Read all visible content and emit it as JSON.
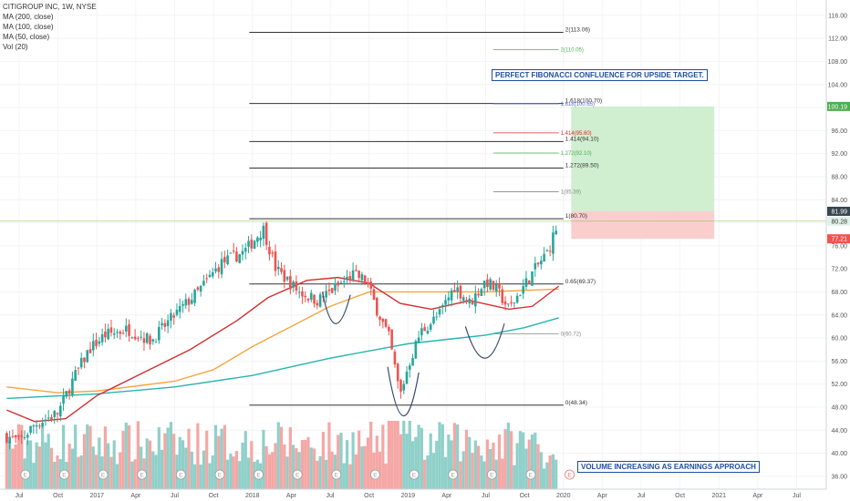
{
  "legend": {
    "symbol_line": "CITIGROUP INC, 1W, NYSE",
    "ma200": "MA (200, close)",
    "ma100": "MA (100, close)",
    "ma50": "MA (50, close)",
    "vol": "Vol (20)"
  },
  "annotations": {
    "fib_confluence": "PERFECT FIBONACCI CONFLUENCE FOR UPSIDE TARGET.",
    "volume_note": "VOLUME INCREASING AS EARNINGS APPROACH"
  },
  "colors": {
    "up": "#26a69a",
    "down": "#ef5350",
    "ma200": "#26b5b0",
    "ma100": "#f7a440",
    "ma50": "#d32f2f",
    "target_zone": "#c8ecc8",
    "stop_zone": "#fbc9c9",
    "annotation": "#1e4fa0"
  },
  "chart_data": {
    "type": "candlestick",
    "symbol": "CITIGROUP INC",
    "interval": "1W",
    "exchange": "NYSE",
    "ylim": [
      34,
      116
    ],
    "y_ticks": [
      "36.00",
      "40.00",
      "44.00",
      "48.00",
      "52.00",
      "56.00",
      "60.00",
      "64.00",
      "68.00",
      "72.00",
      "76.00",
      "80.00",
      "84.00",
      "88.00",
      "92.00",
      "96.00",
      "100.00",
      "104.00",
      "108.00",
      "112.00",
      "116.00"
    ],
    "x_ticks": [
      {
        "label": "Jul",
        "t": 2016.5
      },
      {
        "label": "Oct",
        "t": 2016.75
      },
      {
        "label": "2017",
        "t": 2017.0
      },
      {
        "label": "Apr",
        "t": 2017.25
      },
      {
        "label": "Jul",
        "t": 2017.5
      },
      {
        "label": "Oct",
        "t": 2017.75
      },
      {
        "label": "2018",
        "t": 2018.0
      },
      {
        "label": "Apr",
        "t": 2018.25
      },
      {
        "label": "Jul",
        "t": 2018.5
      },
      {
        "label": "Oct",
        "t": 2018.75
      },
      {
        "label": "2019",
        "t": 2019.0
      },
      {
        "label": "Apr",
        "t": 2019.25
      },
      {
        "label": "Jul",
        "t": 2019.5
      },
      {
        "label": "Oct",
        "t": 2019.75
      },
      {
        "label": "2020",
        "t": 2020.0
      },
      {
        "label": "Apr",
        "t": 2020.25
      },
      {
        "label": "Jul",
        "t": 2020.5
      },
      {
        "label": "Oct",
        "t": 2020.75
      },
      {
        "label": "2021",
        "t": 2021.0
      },
      {
        "label": "Apr",
        "t": 2021.25
      },
      {
        "label": "Jul",
        "t": 2021.5
      }
    ],
    "price_path": [
      [
        2016.42,
        43.0
      ],
      [
        2016.5,
        42.0
      ],
      [
        2016.6,
        45.0
      ],
      [
        2016.75,
        47.0
      ],
      [
        2016.85,
        53.0
      ],
      [
        2016.95,
        58.0
      ],
      [
        2017.05,
        60.5
      ],
      [
        2017.2,
        61.5
      ],
      [
        2017.35,
        59.5
      ],
      [
        2017.5,
        64.0
      ],
      [
        2017.65,
        68.0
      ],
      [
        2017.8,
        73.0
      ],
      [
        2017.95,
        75.0
      ],
      [
        2018.07,
        79.0
      ],
      [
        2018.15,
        72.0
      ],
      [
        2018.3,
        68.0
      ],
      [
        2018.42,
        66.5
      ],
      [
        2018.55,
        69.0
      ],
      [
        2018.65,
        71.0
      ],
      [
        2018.73,
        70.0
      ],
      [
        2018.8,
        65.0
      ],
      [
        2018.88,
        60.0
      ],
      [
        2018.95,
        50.0
      ],
      [
        2019.0,
        55.0
      ],
      [
        2019.08,
        61.0
      ],
      [
        2019.2,
        64.0
      ],
      [
        2019.3,
        69.0
      ],
      [
        2019.4,
        66.0
      ],
      [
        2019.5,
        70.0
      ],
      [
        2019.58,
        68.0
      ],
      [
        2019.65,
        65.0
      ],
      [
        2019.72,
        68.0
      ],
      [
        2019.82,
        72.0
      ],
      [
        2019.9,
        75.0
      ],
      [
        2019.97,
        80.28
      ]
    ],
    "candle_step": 0.0192,
    "moving_averages": [
      {
        "name": "MA (200, close)",
        "color": "#26b5b0",
        "points": [
          [
            2016.42,
            49.5
          ],
          [
            2017.0,
            50.3
          ],
          [
            2017.5,
            51.5
          ],
          [
            2018.0,
            53.5
          ],
          [
            2018.5,
            56.5
          ],
          [
            2019.0,
            59.0
          ],
          [
            2019.5,
            60.5
          ],
          [
            2019.75,
            61.8
          ],
          [
            2019.97,
            63.5
          ]
        ]
      },
      {
        "name": "MA (100, close)",
        "color": "#f7a440",
        "points": [
          [
            2016.42,
            51.5
          ],
          [
            2016.75,
            50.5
          ],
          [
            2017.0,
            50.8
          ],
          [
            2017.5,
            52.5
          ],
          [
            2017.75,
            54.5
          ],
          [
            2018.0,
            58.5
          ],
          [
            2018.25,
            62.0
          ],
          [
            2018.5,
            65.5
          ],
          [
            2018.75,
            68.0
          ],
          [
            2019.0,
            68.0
          ],
          [
            2019.5,
            68.0
          ],
          [
            2019.97,
            68.5
          ]
        ]
      },
      {
        "name": "MA (50, close)",
        "color": "#d32f2f",
        "points": [
          [
            2016.42,
            47.5
          ],
          [
            2016.6,
            45.5
          ],
          [
            2016.8,
            46.0
          ],
          [
            2017.0,
            50.0
          ],
          [
            2017.3,
            54.0
          ],
          [
            2017.6,
            58.0
          ],
          [
            2017.9,
            63.0
          ],
          [
            2018.1,
            67.0
          ],
          [
            2018.35,
            70.0
          ],
          [
            2018.55,
            70.5
          ],
          [
            2018.75,
            69.5
          ],
          [
            2018.95,
            66.0
          ],
          [
            2019.15,
            65.0
          ],
          [
            2019.4,
            66.5
          ],
          [
            2019.65,
            65.0
          ],
          [
            2019.8,
            65.5
          ],
          [
            2019.97,
            69.0
          ]
        ]
      }
    ],
    "fib_set_1": {
      "t_start": 2017.98,
      "t_end": 2020.0,
      "levels": [
        {
          "label": "2(113.06)",
          "value": 113.06
        },
        {
          "label": "1.618(100.70)",
          "value": 100.7
        },
        {
          "label": "1.414(94.10)",
          "value": 94.1
        },
        {
          "label": "1.272(89.50)",
          "value": 89.5
        },
        {
          "label": "1(80.70)",
          "value": 80.7
        },
        {
          "label": "0.65(69.37)",
          "value": 69.37
        },
        {
          "label": "0(48.34)",
          "value": 48.34
        }
      ]
    },
    "fib_set_2": {
      "t_start": 2019.55,
      "t_end": 2019.97,
      "levels": [
        {
          "label": "2(110.05)",
          "value": 110.05,
          "color": "#4caf50"
        },
        {
          "label": "1.618(100.65)",
          "value": 100.65,
          "color": "#5c6bc0"
        },
        {
          "label": "1.414(95.60)",
          "value": 95.6,
          "color": "#d32f2f"
        },
        {
          "label": "1.272(92.10)",
          "value": 92.1,
          "color": "#4caf50"
        },
        {
          "label": "1(85.39)",
          "value": 85.39,
          "color": "#888888"
        },
        {
          "label": "0(60.72)",
          "value": 60.72,
          "color": "#888888"
        }
      ]
    },
    "position": {
      "t_start": 2020.05,
      "t_end": 2020.97,
      "entry": 80.28,
      "target": 100.19,
      "stop": 77.21,
      "mid": 81.99
    },
    "price_labels": [
      {
        "text": "100.19",
        "value": 100.19,
        "bg": "#4caf50",
        "fg": "#ffffff"
      },
      {
        "text": "81.99",
        "value": 81.99,
        "bg": "#37474f",
        "fg": "#ffffff"
      },
      {
        "text": "80.28",
        "value": 80.28,
        "bg": "#e0f2e9",
        "fg": "#333333"
      },
      {
        "text": "77.21",
        "value": 77.21,
        "bg": "#ef5350",
        "fg": "#ffffff"
      }
    ],
    "current_price": 80.28,
    "patterns": [
      {
        "name": "left shoulder",
        "points": [
          [
            2018.45,
            68.0
          ],
          [
            2018.53,
            62.5
          ],
          [
            2018.63,
            67.5
          ]
        ]
      },
      {
        "name": "head",
        "points": [
          [
            2018.87,
            55.0
          ],
          [
            2018.97,
            46.5
          ],
          [
            2019.07,
            54.0
          ]
        ]
      },
      {
        "name": "right shoulder",
        "points": [
          [
            2019.37,
            62.0
          ],
          [
            2019.5,
            56.5
          ],
          [
            2019.62,
            62.5
          ]
        ]
      }
    ],
    "earnings_markers": {
      "label": "E",
      "t": [
        2016.54,
        2016.79,
        2017.04,
        2017.29,
        2017.54,
        2017.79,
        2018.04,
        2018.29,
        2018.54,
        2018.79,
        2019.04,
        2019.29,
        2019.54,
        2019.79,
        2020.04
      ]
    },
    "volume": {
      "seed": 7
    }
  }
}
